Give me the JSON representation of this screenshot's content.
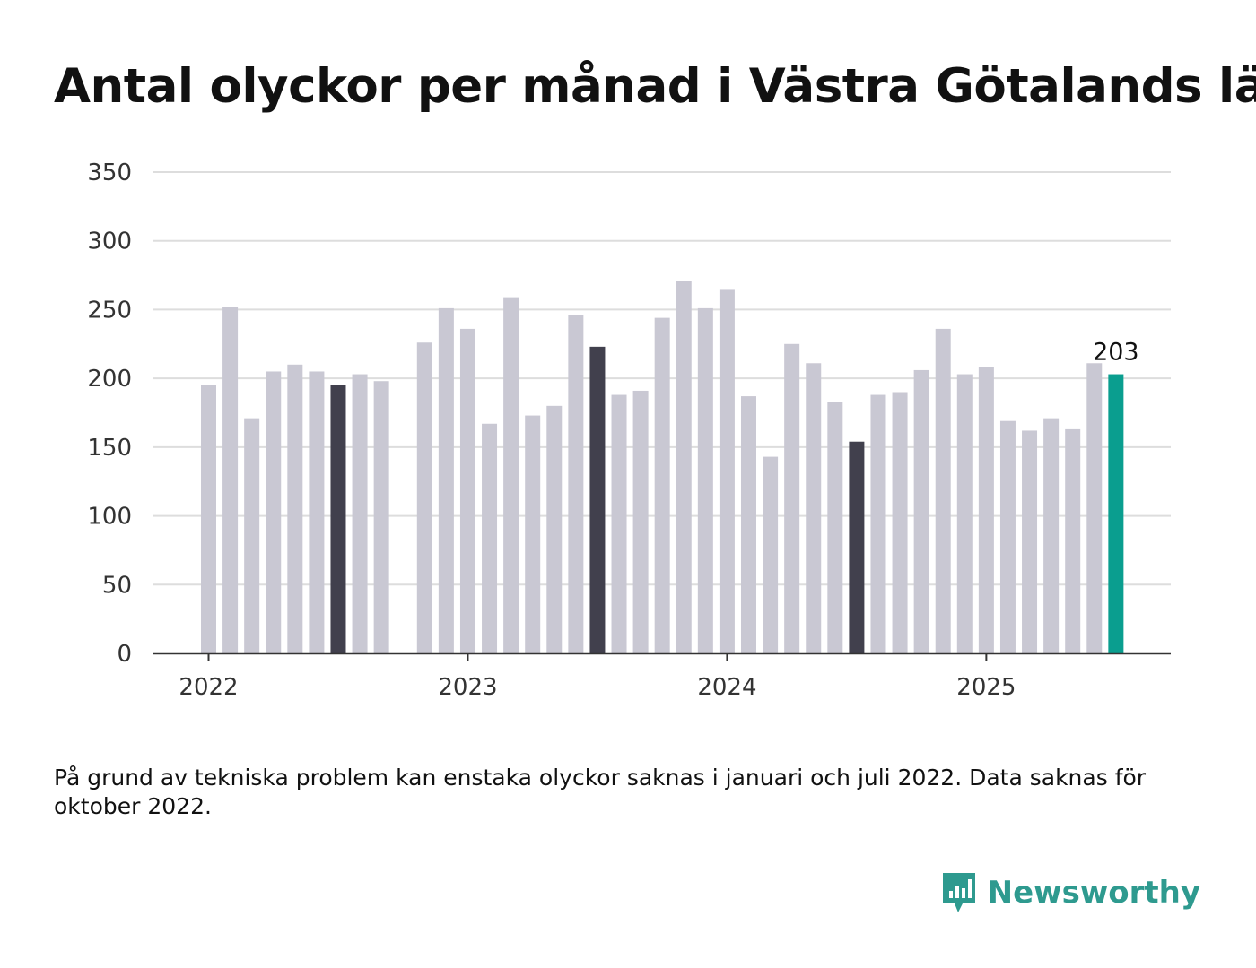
{
  "title": "Antal olyckor per månad i Västra Götalands län",
  "note": "På grund av tekniska problem kan enstaka olyckor saknas i januari och juli 2022. Data saknas för oktober 2022.",
  "brand": {
    "name": "Newsworthy",
    "logo_icon": "bar-chart-speech-bubble-icon"
  },
  "colors": {
    "bar_default": "#c9c8d3",
    "bar_highlight": "#41404d",
    "bar_latest": "#0a9e8f",
    "grid": "#dddddd",
    "axis": "#333333",
    "brand": "#2e9a8f"
  },
  "chart_data": {
    "type": "bar",
    "ylim": [
      0,
      350
    ],
    "yticks": [
      0,
      50,
      100,
      150,
      200,
      250,
      300,
      350
    ],
    "xticks": [
      "2022",
      "2023",
      "2024",
      "2025"
    ],
    "grid": true,
    "x": [
      "2022-01",
      "2022-02",
      "2022-03",
      "2022-04",
      "2022-05",
      "2022-06",
      "2022-07",
      "2022-08",
      "2022-09",
      "2022-10",
      "2022-11",
      "2022-12",
      "2023-01",
      "2023-02",
      "2023-03",
      "2023-04",
      "2023-05",
      "2023-06",
      "2023-07",
      "2023-08",
      "2023-09",
      "2023-10",
      "2023-11",
      "2023-12",
      "2024-01",
      "2024-02",
      "2024-03",
      "2024-04",
      "2024-05",
      "2024-06",
      "2024-07",
      "2024-08",
      "2024-09",
      "2024-10",
      "2024-11",
      "2024-12",
      "2025-01",
      "2025-02",
      "2025-03",
      "2025-04",
      "2025-05",
      "2025-06",
      "2025-07"
    ],
    "values": [
      195,
      252,
      171,
      205,
      210,
      205,
      195,
      203,
      198,
      null,
      226,
      251,
      236,
      167,
      259,
      173,
      180,
      246,
      223,
      188,
      191,
      244,
      271,
      251,
      265,
      187,
      143,
      225,
      211,
      183,
      154,
      188,
      190,
      206,
      236,
      203,
      208,
      169,
      162,
      171,
      163,
      211,
      203
    ],
    "highlighted": [
      "2022-07",
      "2023-07",
      "2024-07"
    ],
    "latest": "2025-07",
    "annotation": {
      "x": "2025-07",
      "text": "203"
    }
  }
}
